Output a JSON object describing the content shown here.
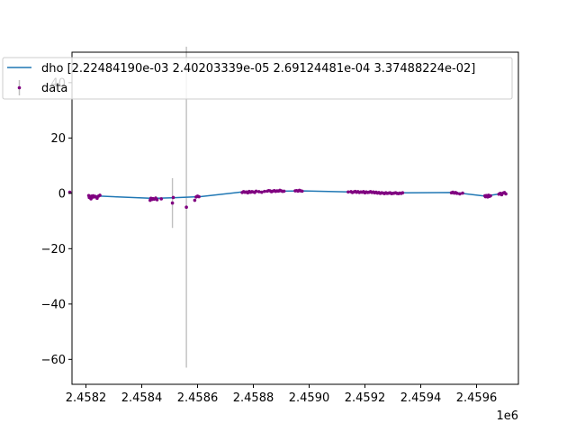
{
  "chart_data": {
    "type": "line",
    "title": "",
    "xlabel": "",
    "ylabel": "",
    "x_offset_label": "1e6",
    "xlim": [
      2.45815,
      2.45975
    ],
    "ylim": [
      -69,
      51
    ],
    "x_ticks": [
      2.4582,
      2.4584,
      2.4586,
      2.4588,
      2.459,
      2.4592,
      2.4594,
      2.4596
    ],
    "x_tick_labels": [
      "2.4582",
      "2.4584",
      "2.4586",
      "2.4588",
      "2.4590",
      "2.4592",
      "2.4594",
      "2.4596"
    ],
    "y_ticks": [
      -60,
      -40,
      -20,
      0,
      20,
      40
    ],
    "y_tick_labels": [
      "−60",
      "−40",
      "−20",
      "0",
      "20",
      "40"
    ],
    "grid": false,
    "legend_placement": "top-left",
    "series": [
      {
        "name": "dho [2.22484190e-03 2.40203339e-05 2.69124481e-04 3.37488224e-02]",
        "kind": "line",
        "color": "#1f77b4",
        "x": [
          2.45821,
          2.45825,
          2.45844,
          2.45851,
          2.45861,
          2.45876,
          2.4589,
          2.45898,
          2.45915,
          2.45925,
          2.45935,
          2.45952,
          2.45963,
          2.4597
        ],
        "y": [
          -0.8,
          -1.0,
          -1.8,
          -1.6,
          -1.2,
          0.5,
          0.8,
          0.9,
          0.5,
          0.3,
          0.2,
          0.3,
          -1.0,
          0.0
        ]
      },
      {
        "name": "data",
        "kind": "errorbar",
        "color": "#800080",
        "errcolor": "#c0c0c0",
        "x": [
          2.45821,
          2.458212,
          2.458215,
          2.458218,
          2.45822,
          2.458223,
          2.458226,
          2.45823,
          2.458233,
          2.45824,
          2.458245,
          2.45825,
          2.45843,
          2.458433,
          2.458437,
          2.45844,
          2.458445,
          2.45845,
          2.458455,
          2.45847,
          2.45851,
          2.458513,
          2.45856,
          2.45859,
          2.458595,
          2.4586,
          2.458605,
          2.45876,
          2.458765,
          2.45877,
          2.458775,
          2.45878,
          2.458785,
          2.45879,
          2.458795,
          2.4588,
          2.458805,
          2.45881,
          2.45882,
          2.45883,
          2.45884,
          2.45885,
          2.458855,
          2.45886,
          2.458865,
          2.45887,
          2.458875,
          2.45888,
          2.458885,
          2.45889,
          2.458895,
          2.4589,
          2.458905,
          2.45891,
          2.45895,
          2.458955,
          2.45896,
          2.458965,
          2.45897,
          2.458975,
          2.45914,
          2.458142,
          2.45915,
          2.459155,
          2.45916,
          2.459165,
          2.45917,
          2.459175,
          2.45918,
          2.459185,
          2.45919,
          2.459195,
          2.4592,
          2.459205,
          2.45921,
          2.459215,
          2.45922,
          2.459225,
          2.45923,
          2.459235,
          2.45924,
          2.459245,
          2.45925,
          2.459255,
          2.45926,
          2.459265,
          2.45927,
          2.459275,
          2.45928,
          2.459285,
          2.45929,
          2.459295,
          2.4593,
          2.459305,
          2.45931,
          2.459315,
          2.45932,
          2.459325,
          2.45933,
          2.459335,
          2.45951,
          2.459515,
          2.45952,
          2.459525,
          2.45953,
          2.45954,
          2.45955,
          2.45963,
          2.459632,
          2.459635,
          2.459638,
          2.45964,
          2.459643,
          2.459646,
          2.45965,
          2.45968,
          2.459685,
          2.45969,
          2.459695,
          2.4597,
          2.459705
        ],
        "y": [
          -0.8,
          -1.5,
          -1.2,
          -2.0,
          -1.0,
          -1.4,
          -0.9,
          -1.3,
          -1.1,
          -1.8,
          -1.0,
          -0.7,
          -2.5,
          -1.8,
          -2.2,
          -1.9,
          -2.1,
          -1.7,
          -2.3,
          -2.0,
          -3.5,
          -1.5,
          -5.0,
          -2.5,
          -1.3,
          -1.0,
          -1.2,
          0.3,
          0.6,
          0.4,
          0.5,
          0.2,
          0.7,
          0.4,
          0.6,
          0.5,
          0.3,
          0.8,
          0.6,
          0.4,
          0.7,
          0.8,
          1.0,
          0.9,
          0.6,
          0.8,
          1.0,
          0.7,
          0.9,
          0.8,
          1.1,
          0.9,
          0.7,
          0.8,
          0.9,
          1.0,
          0.8,
          1.1,
          0.9,
          0.8,
          0.5,
          0.4,
          0.6,
          0.3,
          0.5,
          0.7,
          0.4,
          0.6,
          0.3,
          0.5,
          0.4,
          0.6,
          0.2,
          0.5,
          0.3,
          0.4,
          0.6,
          0.3,
          0.5,
          0.2,
          0.4,
          0.1,
          0.3,
          0.0,
          0.2,
          0.1,
          -0.1,
          0.2,
          0.0,
          0.1,
          0.2,
          -0.1,
          0.0,
          0.1,
          0.2,
          0.0,
          -0.1,
          0.1,
          0.0,
          0.2,
          0.2,
          0.4,
          0.1,
          0.3,
          0.0,
          -0.2,
          0.1,
          -0.9,
          -1.2,
          -0.8,
          -1.0,
          -1.3,
          -0.7,
          -1.1,
          -0.9,
          -0.3,
          0.0,
          -0.5,
          0.1,
          0.3,
          -0.2
        ],
        "yerr": [
          0.5,
          0.5,
          0.5,
          0.5,
          0.5,
          0.5,
          0.5,
          0.5,
          0.5,
          0.5,
          0.5,
          0.5,
          0.5,
          0.5,
          0.5,
          0.5,
          0.5,
          0.5,
          0.5,
          0.5,
          9,
          0.5,
          58,
          0.5,
          0.5,
          0.5,
          0.5,
          0.3,
          0.3,
          0.3,
          0.3,
          0.3,
          0.3,
          0.3,
          0.3,
          0.3,
          0.3,
          0.3,
          0.3,
          0.3,
          0.3,
          0.3,
          0.3,
          0.3,
          0.3,
          0.3,
          0.3,
          0.3,
          0.3,
          0.3,
          0.3,
          0.3,
          0.3,
          0.3,
          0.3,
          0.3,
          0.3,
          0.3,
          0.3,
          0.3,
          0.3,
          0.3,
          0.3,
          0.3,
          0.3,
          0.3,
          0.3,
          0.3,
          0.3,
          0.3,
          0.3,
          0.3,
          0.3,
          0.3,
          0.3,
          0.3,
          0.3,
          0.3,
          0.3,
          0.3,
          0.3,
          0.3,
          0.3,
          0.3,
          0.3,
          0.3,
          0.3,
          0.3,
          0.3,
          0.3,
          0.3,
          0.3,
          0.3,
          0.3,
          0.3,
          0.3,
          0.3,
          0.3,
          0.3,
          0.3,
          0.3,
          0.3,
          0.3,
          0.3,
          0.3,
          0.3,
          0.3,
          0.3,
          0.3,
          0.3,
          0.3,
          0.3,
          0.3,
          0.3,
          0.3,
          0.3,
          0.3,
          0.3,
          0.3,
          0.3,
          0.3
        ]
      }
    ]
  }
}
